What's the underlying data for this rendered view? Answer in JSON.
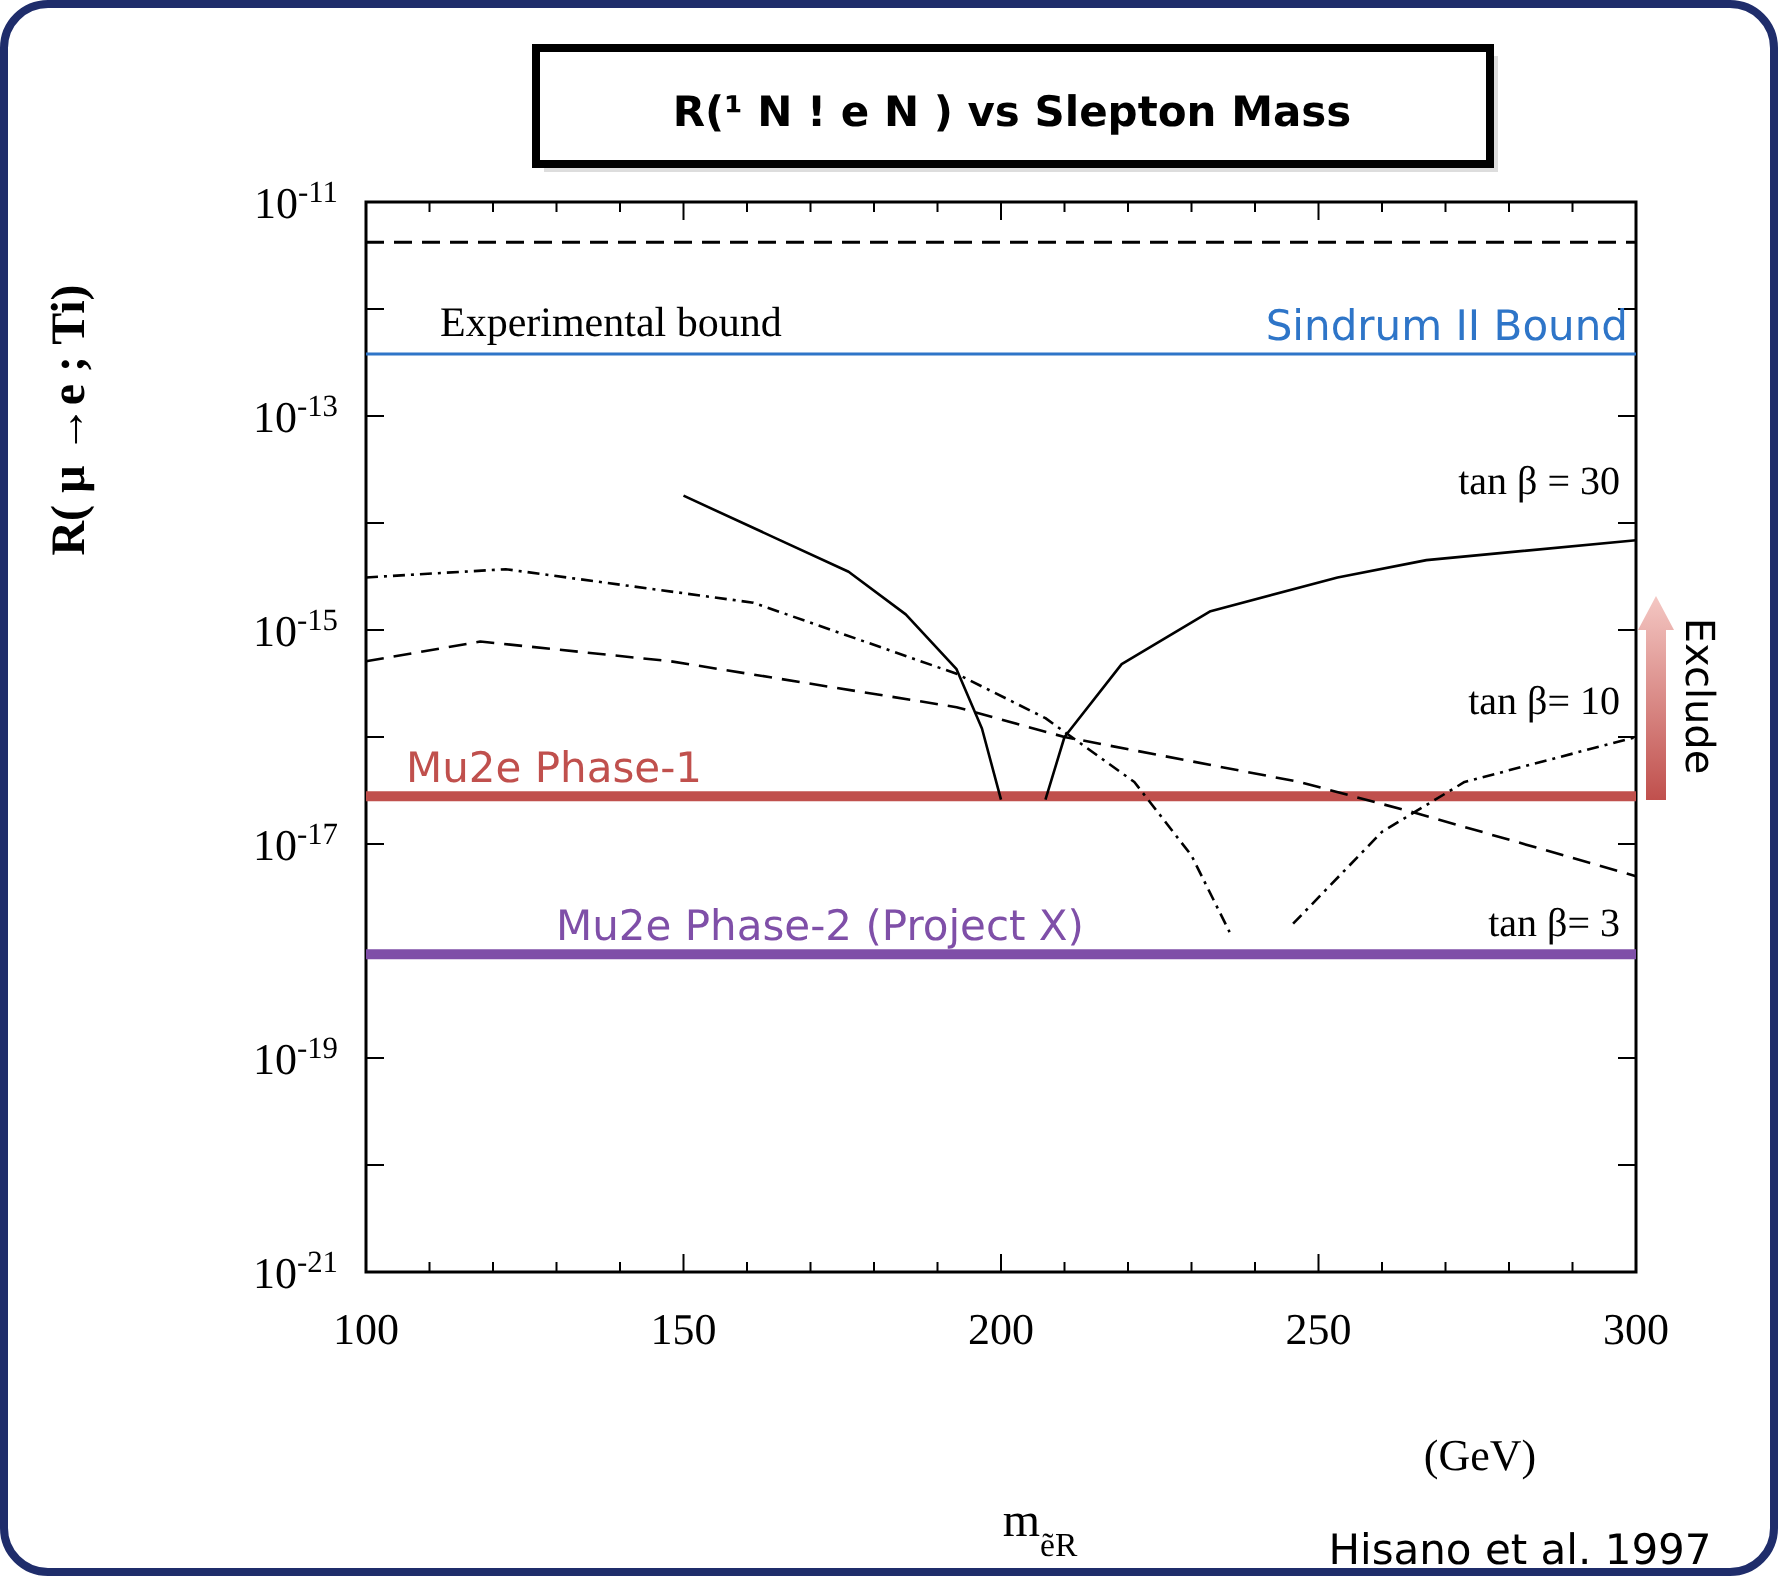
{
  "chart_data": {
    "type": "line",
    "title": "R(¹ N ! e N ) vs Slepton Mass",
    "xlabel": "m$_{ẽR}$",
    "ylabel": "R( µ →e ; Ti)",
    "log": "y",
    "xlim": [
      100,
      300
    ],
    "ylim": [
      1e-21,
      1e-11
    ],
    "xticks": [
      100,
      {
        "value": 110,
        "label": null
      },
      {
        "value": 120,
        "label": null
      },
      {
        "value": 130,
        "label": null
      },
      {
        "value": 140,
        "label": null
      },
      150,
      {
        "value": 160,
        "label": null
      },
      {
        "value": 170,
        "label": null
      },
      {
        "value": 180,
        "label": null
      },
      {
        "value": 190,
        "label": null
      },
      200,
      {
        "value": 210,
        "label": null
      },
      {
        "value": 220,
        "label": null
      },
      {
        "value": 230,
        "label": null
      },
      {
        "value": 240,
        "label": null
      },
      250,
      {
        "value": 260,
        "label": null
      },
      {
        "value": 270,
        "label": null
      },
      {
        "value": 280,
        "label": null
      },
      {
        "value": 290,
        "label": null
      },
      300
    ],
    "yticks": [
      {
        "value": 1e-21,
        "label": "10$^{-21}$"
      },
      {
        "value": 1e-20,
        "label": null
      },
      {
        "value": 1e-19,
        "label": "10$^{-19}$"
      },
      {
        "value": 1e-18,
        "label": null
      },
      {
        "value": 1e-17,
        "label": "10$^{-17}$"
      },
      {
        "value": 1e-16,
        "label": null
      },
      {
        "value": 1e-15,
        "label": "10$^{-15}$"
      },
      {
        "value": 1e-14,
        "label": null
      },
      {
        "value": 1e-13,
        "label": "10$^{-13}$"
      },
      {
        "value": 1e-12,
        "label": null
      },
      {
        "value": 1e-11,
        "label": "10$^{-11}$"
      }
    ],
    "series": [
      {
        "color": "#000000",
        "line_style": "solid",
        "x": [
          150,
          165,
          176,
          185,
          193,
          197,
          200,
          203.5,
          207,
          210,
          219,
          233,
          253,
          267,
          300
        ],
        "values": [
          1.8e-14,
          7e-15,
          3.5e-15,
          1.4e-15,
          4.3e-16,
          1.2e-16,
          2.6e-17,
          null,
          2.6e-17,
          1e-16,
          4.8e-16,
          1.5e-15,
          3.1e-15,
          4.5e-15,
          6.9e-15
        ]
      },
      {
        "color": "#000000",
        "line_style": "dotted",
        "x": [
          100,
          122,
          161,
          193,
          207,
          221,
          230,
          236,
          241.5,
          246,
          260,
          273,
          300
        ],
        "values": [
          3.1e-15,
          3.7e-15,
          1.8e-15,
          3.9e-16,
          1.5e-16,
          3.8e-17,
          7.8e-18,
          1.5e-18,
          null,
          1.8e-18,
          1.3e-17,
          3.8e-17,
          1e-16
        ]
      },
      {
        "color": "#000000",
        "line_style": "dashed",
        "x": [
          100,
          118,
          148,
          193,
          210,
          247,
          266,
          300
        ],
        "values": [
          5.1e-16,
          7.8e-16,
          5.1e-16,
          1.9e-16,
          1e-16,
          3.8e-17,
          1.9e-17,
          5e-18
        ]
      }
    ],
    "ref_lines": [
      {
        "axis": "y",
        "value": 4.2e-12,
        "color": "#000000",
        "line_style": "dashed"
      },
      {
        "axis": "y",
        "value": 3.8e-13,
        "label": "Sindrum II Bound",
        "color": "#2e75c8"
      },
      {
        "axis": "y",
        "value": 2.8e-17,
        "label": "Mu2e Phase-1",
        "color": "#c0504d"
      },
      {
        "axis": "y",
        "value": 9.3e-19,
        "label": "Mu2e Phase-2 (Project X)",
        "color": "#7f4fa8"
      }
    ],
    "annotations": [
      "Experimental bound",
      "tan β = 30",
      "tan β= 10",
      "tan β= 3",
      "(GeV)",
      "Hisano et al. 1997",
      "Exclude"
    ]
  }
}
